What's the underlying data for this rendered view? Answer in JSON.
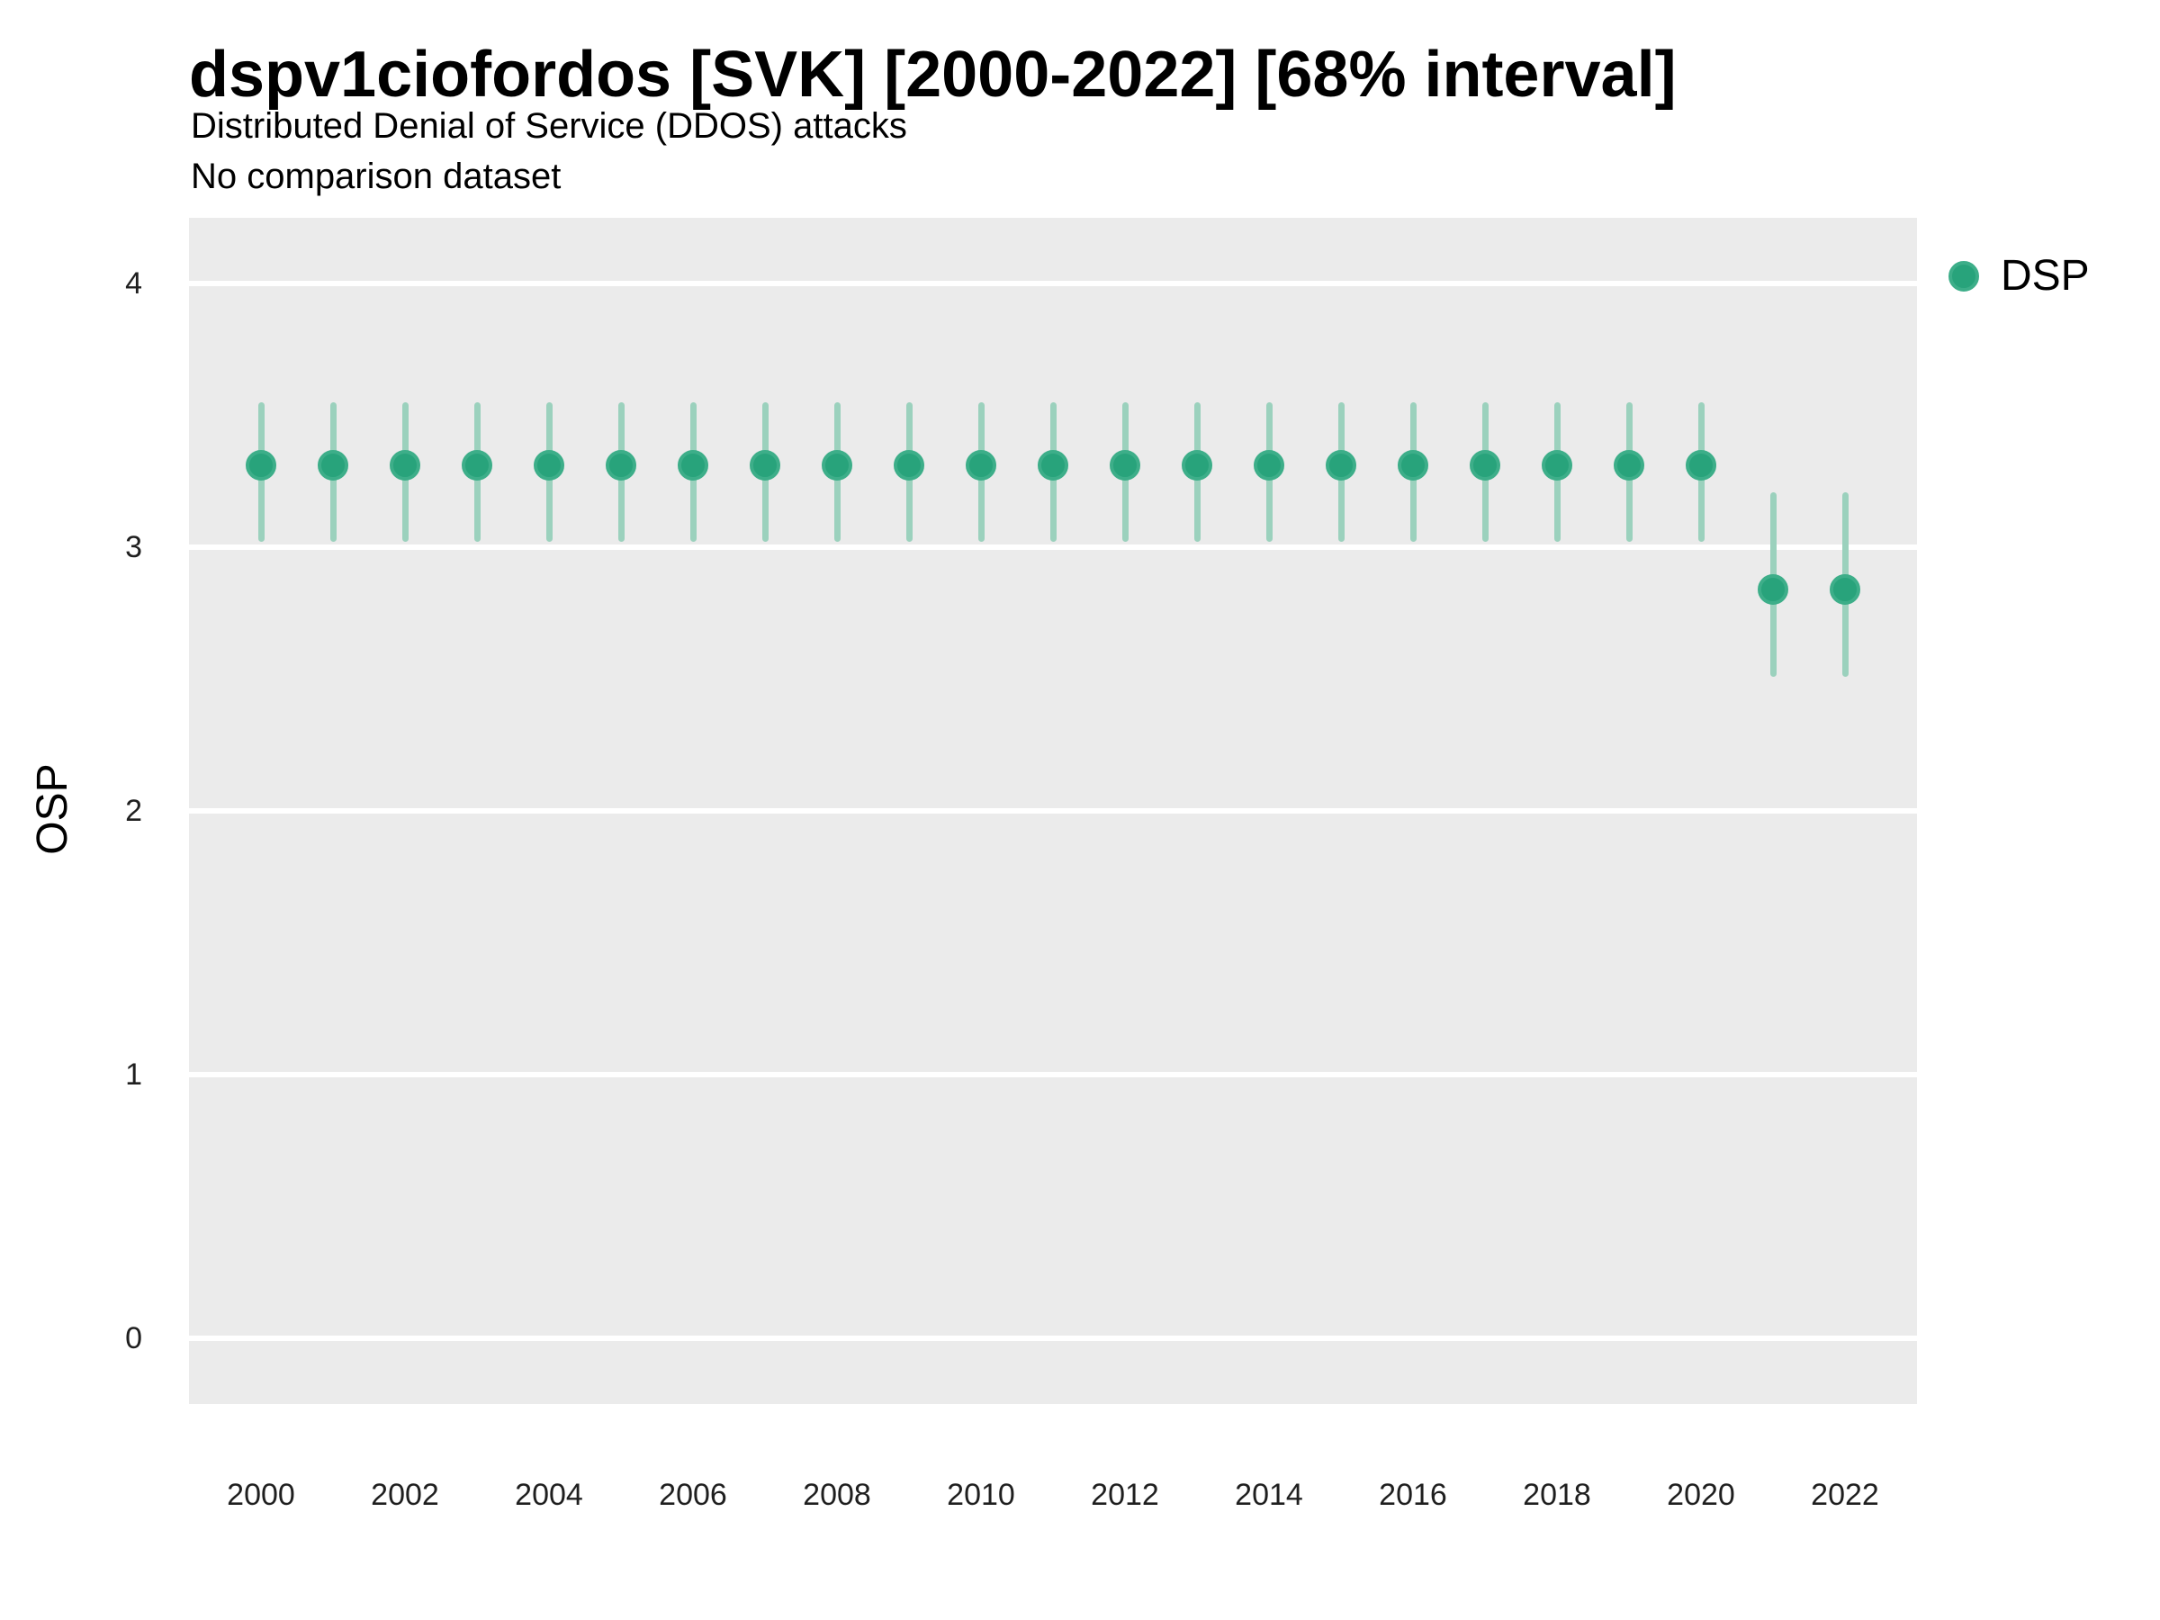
{
  "header": {
    "title": "dspv1ciofordos [SVK] [2000-2022] [68% interval]",
    "subtitle": "Distributed Denial of Service (DDOS) attacks",
    "subtitle2": "No comparison dataset"
  },
  "legend": {
    "items": [
      {
        "label": "DSP",
        "marker": "circle-icon"
      }
    ]
  },
  "colors": {
    "accent_fill": "#28a37b",
    "accent_ring": "#3dae89",
    "interval_bar": "#9bd1bd",
    "plot_background": "#ebebeb",
    "gridline": "#ffffff",
    "tick_text": "#1f1f1f",
    "title_text": "#000000"
  },
  "chart_data": {
    "type": "scatter",
    "subtype": "pointrange",
    "title": "dspv1ciofordos [SVK] [2000-2022] [68% interval]",
    "subtitle": "Distributed Denial of Service (DDOS) attacks",
    "comparison_note": "No comparison dataset",
    "interval_level": "68%",
    "xlabel": "",
    "ylabel": "OSP",
    "x": [
      2000,
      2001,
      2002,
      2003,
      2004,
      2005,
      2006,
      2007,
      2008,
      2009,
      2010,
      2011,
      2012,
      2013,
      2014,
      2015,
      2016,
      2017,
      2018,
      2019,
      2020,
      2021,
      2022
    ],
    "series": [
      {
        "name": "DSP",
        "values": [
          3.31,
          3.31,
          3.31,
          3.31,
          3.31,
          3.31,
          3.31,
          3.31,
          3.31,
          3.31,
          3.31,
          3.31,
          3.31,
          3.31,
          3.31,
          3.31,
          3.31,
          3.31,
          3.31,
          3.31,
          3.31,
          2.84,
          2.84
        ],
        "lo": [
          3.02,
          3.02,
          3.02,
          3.02,
          3.02,
          3.02,
          3.02,
          3.02,
          3.02,
          3.02,
          3.02,
          3.02,
          3.02,
          3.02,
          3.02,
          3.02,
          3.02,
          3.02,
          3.02,
          3.02,
          3.02,
          2.51,
          2.51
        ],
        "hi": [
          3.55,
          3.55,
          3.55,
          3.55,
          3.55,
          3.55,
          3.55,
          3.55,
          3.55,
          3.55,
          3.55,
          3.55,
          3.55,
          3.55,
          3.55,
          3.55,
          3.55,
          3.55,
          3.55,
          3.55,
          3.55,
          3.21,
          3.21
        ]
      }
    ],
    "ylim": [
      -0.25,
      4.25
    ],
    "yticks": [
      0,
      1,
      2,
      3,
      4
    ],
    "xticks": [
      2000,
      2002,
      2004,
      2006,
      2008,
      2010,
      2012,
      2014,
      2016,
      2018,
      2020,
      2022
    ],
    "grid": "horizontal-major-only",
    "legend_position": "right-top",
    "plot_bg": "#ebebeb"
  }
}
